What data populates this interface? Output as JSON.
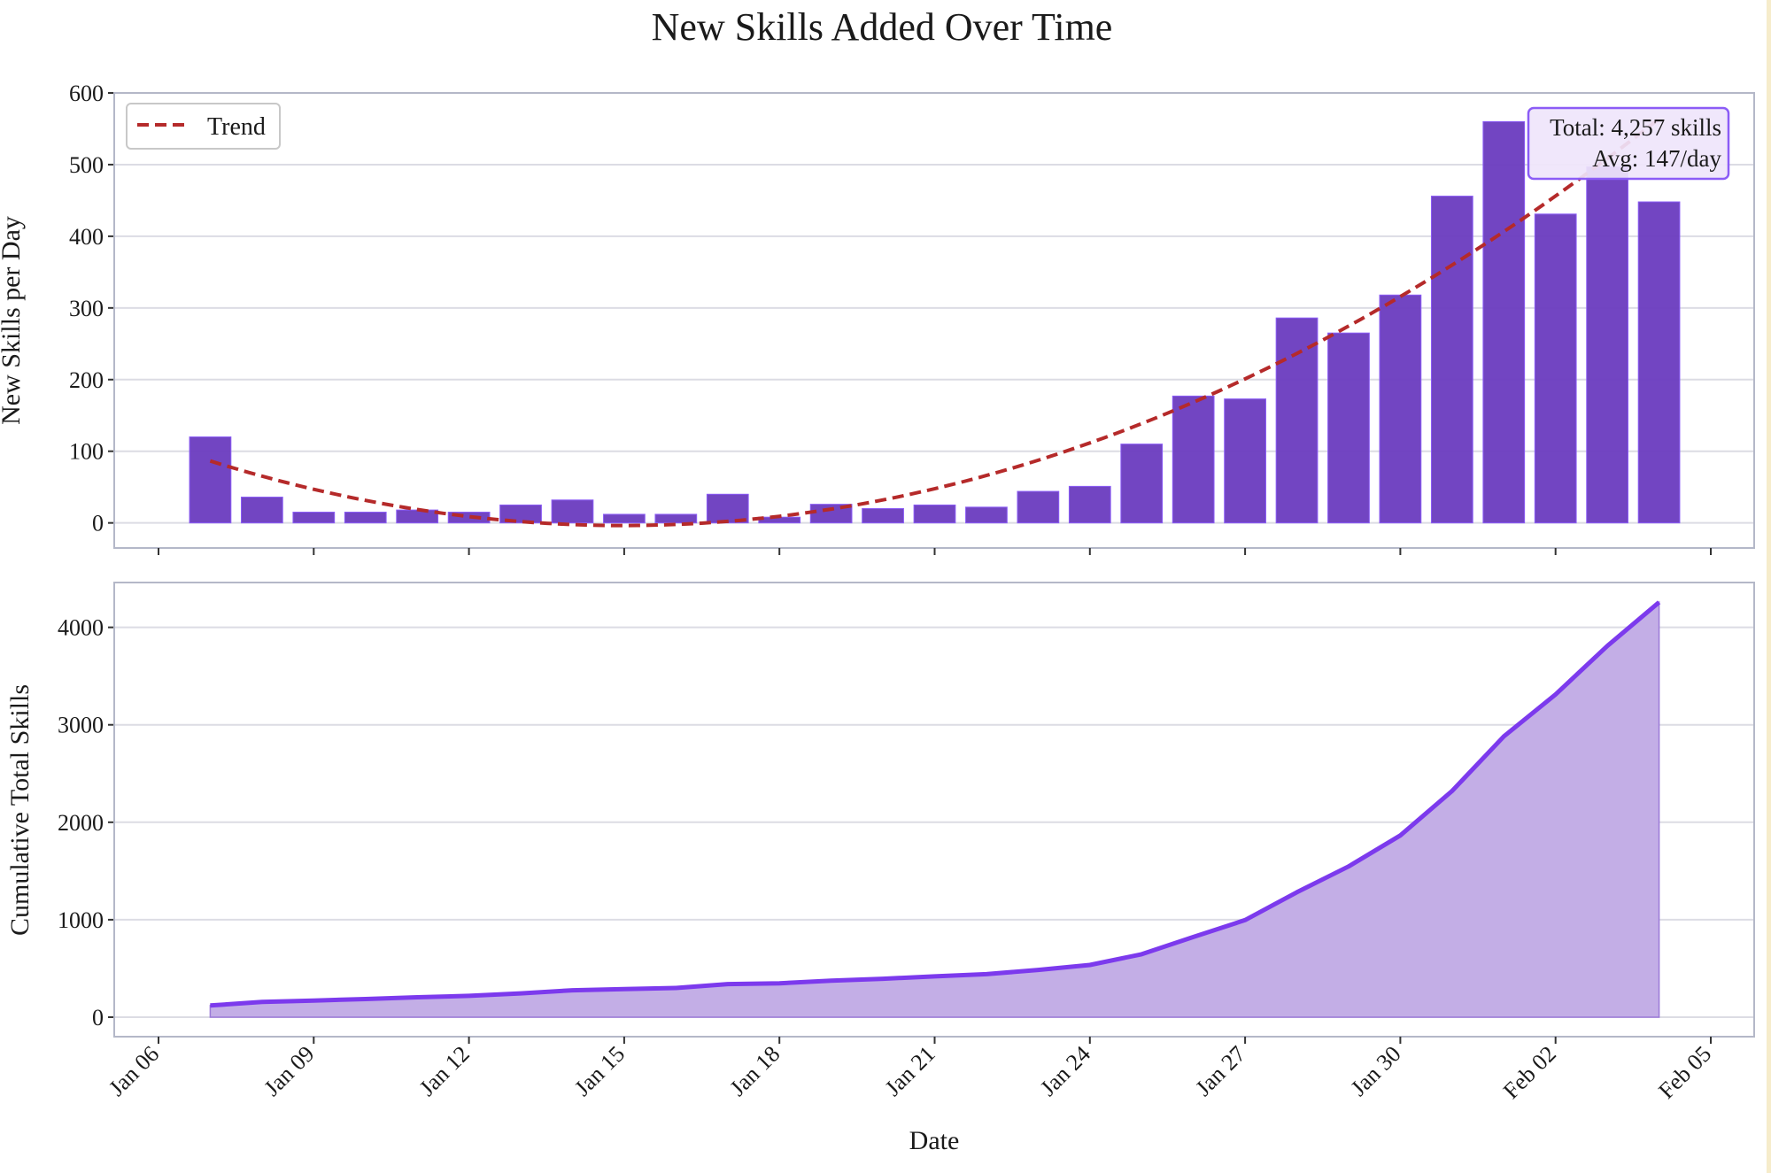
{
  "chart_data": [
    {
      "type": "bar",
      "title": "New Skills Added Over Time",
      "xlabel": "",
      "ylabel": "New Skills per Day",
      "ylim": [
        -35,
        600
      ],
      "yticks": [
        0,
        100,
        200,
        300,
        400,
        500,
        600
      ],
      "grid": true,
      "legend_position": "top-left",
      "dates": [
        "2025-01-07",
        "2025-01-08",
        "2025-01-09",
        "2025-01-10",
        "2025-01-11",
        "2025-01-12",
        "2025-01-13",
        "2025-01-14",
        "2025-01-15",
        "2025-01-16",
        "2025-01-17",
        "2025-01-18",
        "2025-01-19",
        "2025-01-20",
        "2025-01-21",
        "2025-01-22",
        "2025-01-23",
        "2025-01-24",
        "2025-01-25",
        "2025-01-26",
        "2025-01-27",
        "2025-01-28",
        "2025-01-29",
        "2025-01-30",
        "2025-01-31",
        "2025-02-01",
        "2025-02-02",
        "2025-02-03",
        "2025-02-04"
      ],
      "values": [
        120,
        36,
        15,
        15,
        18,
        15,
        25,
        32,
        12,
        12,
        40,
        8,
        26,
        20,
        25,
        22,
        44,
        51,
        110,
        177,
        173,
        286,
        265,
        318,
        456,
        560,
        431,
        497,
        448
      ],
      "bar_color": "#6a3bbf",
      "series": [
        {
          "name": "Trend",
          "kind": "quadratic fit",
          "style": "dashed",
          "color": "#b52a2a"
        }
      ],
      "annotation": {
        "line1": "Total: 4,257 skills",
        "line2": "Avg: 147/day",
        "background": "#efe5fb",
        "border": "#8b5cf6"
      }
    },
    {
      "type": "area",
      "xlabel": "Date",
      "ylabel": "Cumulative Total Skills",
      "ylim": [
        -200,
        4460
      ],
      "yticks": [
        0,
        1000,
        2000,
        3000,
        4000
      ],
      "grid": true,
      "line_color": "#7c3aed",
      "fill_color": "#c3aee6",
      "values_source": "cumulative sum of daily values",
      "xticks": [
        "Jan 06",
        "Jan 09",
        "Jan 12",
        "Jan 15",
        "Jan 18",
        "Jan 21",
        "Jan 24",
        "Jan 27",
        "Jan 30",
        "Feb 02",
        "Feb 05"
      ]
    }
  ]
}
